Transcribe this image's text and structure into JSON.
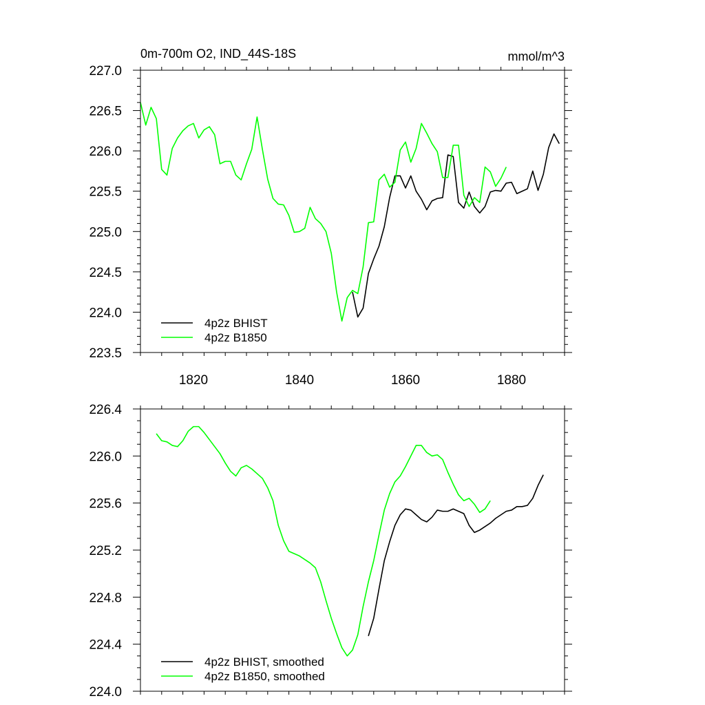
{
  "colors": {
    "bhist": "#000000",
    "b1850": "#00ff00",
    "axis": "#000000"
  },
  "chart_data": [
    {
      "type": "line",
      "title_left": "0m-700m O2, IND_44S-18S",
      "title_right": "mmol/m^3",
      "xlim": [
        1810,
        1890
      ],
      "ylim": [
        223.5,
        227.0
      ],
      "x_major_ticks": [
        1820,
        1840,
        1860,
        1880
      ],
      "x_tick_labels": [
        "1820",
        "1840",
        "1860",
        "1880"
      ],
      "y_major_ticks": [
        223.5,
        224.0,
        224.5,
        225.0,
        225.5,
        226.0,
        226.5,
        227.0
      ],
      "y_tick_labels": [
        "223.5",
        "224.0",
        "224.5",
        "225.0",
        "225.5",
        "226.0",
        "226.5",
        "227.0"
      ],
      "legend": [
        "4p2z BHIST",
        "4p2z B1850"
      ],
      "series": [
        {
          "name": "4p2z BHIST",
          "color": "#000000",
          "x": [
            1850,
            1851,
            1852,
            1853,
            1854,
            1855,
            1856,
            1857,
            1858,
            1859,
            1860,
            1861,
            1862,
            1863,
            1864,
            1865,
            1866,
            1867,
            1868,
            1869,
            1870,
            1871,
            1872,
            1873,
            1874,
            1875,
            1876,
            1877,
            1878,
            1879,
            1880,
            1881,
            1882,
            1883,
            1884,
            1885,
            1886,
            1887,
            1888,
            1889
          ],
          "y": [
            224.25,
            223.94,
            224.05,
            224.48,
            224.66,
            224.82,
            225.06,
            225.42,
            225.69,
            225.69,
            225.54,
            225.69,
            225.5,
            225.4,
            225.27,
            225.38,
            225.41,
            225.42,
            225.95,
            225.93,
            225.36,
            225.29,
            225.49,
            225.31,
            225.23,
            225.31,
            225.49,
            225.51,
            225.5,
            225.6,
            225.61,
            225.47,
            225.5,
            225.53,
            225.75,
            225.51,
            225.71,
            226.04,
            226.21,
            226.09
          ]
        },
        {
          "name": "4p2z B1850",
          "color": "#00ff00",
          "x": [
            1810,
            1811,
            1812,
            1813,
            1814,
            1815,
            1816,
            1817,
            1818,
            1819,
            1820,
            1821,
            1822,
            1823,
            1824,
            1825,
            1826,
            1827,
            1828,
            1829,
            1830,
            1831,
            1832,
            1833,
            1834,
            1835,
            1836,
            1837,
            1838,
            1839,
            1840,
            1841,
            1842,
            1843,
            1844,
            1845,
            1846,
            1847,
            1848,
            1849,
            1850,
            1851,
            1852,
            1853,
            1854,
            1855,
            1856,
            1857,
            1858,
            1859,
            1860,
            1861,
            1862,
            1863,
            1864,
            1865,
            1866,
            1867,
            1868,
            1869,
            1870,
            1871,
            1872,
            1873,
            1874,
            1875,
            1876,
            1877,
            1878,
            1879
          ],
          "y": [
            226.6,
            226.32,
            226.54,
            226.4,
            225.77,
            225.7,
            226.03,
            226.16,
            226.25,
            226.31,
            226.34,
            226.16,
            226.26,
            226.3,
            226.2,
            225.84,
            225.87,
            225.87,
            225.7,
            225.64,
            225.84,
            226.02,
            226.42,
            226.02,
            225.65,
            225.41,
            225.34,
            225.33,
            225.2,
            224.99,
            225.0,
            225.04,
            225.3,
            225.16,
            225.1,
            225.0,
            224.73,
            224.25,
            223.89,
            224.18,
            224.27,
            224.23,
            224.56,
            225.11,
            225.12,
            225.64,
            225.71,
            225.55,
            225.61,
            226.01,
            226.11,
            225.86,
            226.03,
            226.34,
            226.22,
            226.09,
            225.99,
            225.67,
            225.67,
            226.07,
            226.07,
            225.45,
            225.31,
            225.42,
            225.36,
            225.8,
            225.74,
            225.56,
            225.66,
            225.8
          ]
        }
      ]
    },
    {
      "type": "line",
      "xlim": [
        1810,
        1890
      ],
      "ylim": [
        224.0,
        226.4
      ],
      "x_major_ticks": [
        1820,
        1840,
        1860,
        1880
      ],
      "y_major_ticks": [
        224.0,
        224.4,
        224.8,
        225.2,
        225.6,
        226.0,
        226.4
      ],
      "y_tick_labels": [
        "224.0",
        "224.4",
        "224.8",
        "225.2",
        "225.6",
        "226.0",
        "226.4"
      ],
      "legend": [
        "4p2z BHIST, smoothed",
        "4p2z B1850, smoothed"
      ],
      "series": [
        {
          "name": "4p2z BHIST, smoothed",
          "color": "#000000",
          "x": [
            1853,
            1854,
            1855,
            1856,
            1857,
            1858,
            1859,
            1860,
            1861,
            1862,
            1863,
            1864,
            1865,
            1866,
            1867,
            1868,
            1869,
            1870,
            1871,
            1872,
            1873,
            1874,
            1875,
            1876,
            1877,
            1878,
            1879,
            1880,
            1881,
            1882,
            1883,
            1884,
            1885,
            1886
          ],
          "y": [
            224.47,
            224.62,
            224.87,
            225.11,
            225.27,
            225.41,
            225.5,
            225.55,
            225.54,
            225.5,
            225.46,
            225.44,
            225.48,
            225.54,
            225.53,
            225.53,
            225.55,
            225.53,
            225.51,
            225.41,
            225.35,
            225.37,
            225.4,
            225.43,
            225.47,
            225.5,
            225.53,
            225.54,
            225.57,
            225.57,
            225.58,
            225.64,
            225.75,
            225.84
          ]
        },
        {
          "name": "4p2z B1850, smoothed",
          "color": "#00ff00",
          "x": [
            1813,
            1814,
            1815,
            1816,
            1817,
            1818,
            1819,
            1820,
            1821,
            1822,
            1823,
            1824,
            1825,
            1826,
            1827,
            1828,
            1829,
            1830,
            1831,
            1832,
            1833,
            1834,
            1835,
            1836,
            1837,
            1838,
            1839,
            1840,
            1841,
            1842,
            1843,
            1844,
            1845,
            1846,
            1847,
            1848,
            1849,
            1850,
            1851,
            1852,
            1853,
            1854,
            1855,
            1856,
            1857,
            1858,
            1859,
            1860,
            1861,
            1862,
            1863,
            1864,
            1865,
            1866,
            1867,
            1868,
            1869,
            1870,
            1871,
            1872,
            1873,
            1874,
            1875,
            1876
          ],
          "y": [
            226.19,
            226.13,
            226.12,
            226.09,
            226.08,
            226.13,
            226.21,
            226.25,
            226.25,
            226.2,
            226.14,
            226.08,
            226.02,
            225.94,
            225.87,
            225.83,
            225.9,
            225.92,
            225.89,
            225.85,
            225.81,
            225.73,
            225.62,
            225.41,
            225.28,
            225.19,
            225.17,
            225.15,
            225.12,
            225.09,
            225.05,
            224.93,
            224.77,
            224.62,
            224.49,
            224.37,
            224.3,
            224.35,
            224.48,
            224.72,
            224.93,
            225.11,
            225.33,
            225.54,
            225.68,
            225.78,
            225.83,
            225.91,
            226.0,
            226.09,
            226.09,
            226.03,
            226.0,
            226.01,
            225.97,
            225.86,
            225.76,
            225.67,
            225.62,
            225.64,
            225.59,
            225.52,
            225.55,
            225.62
          ]
        }
      ]
    }
  ]
}
